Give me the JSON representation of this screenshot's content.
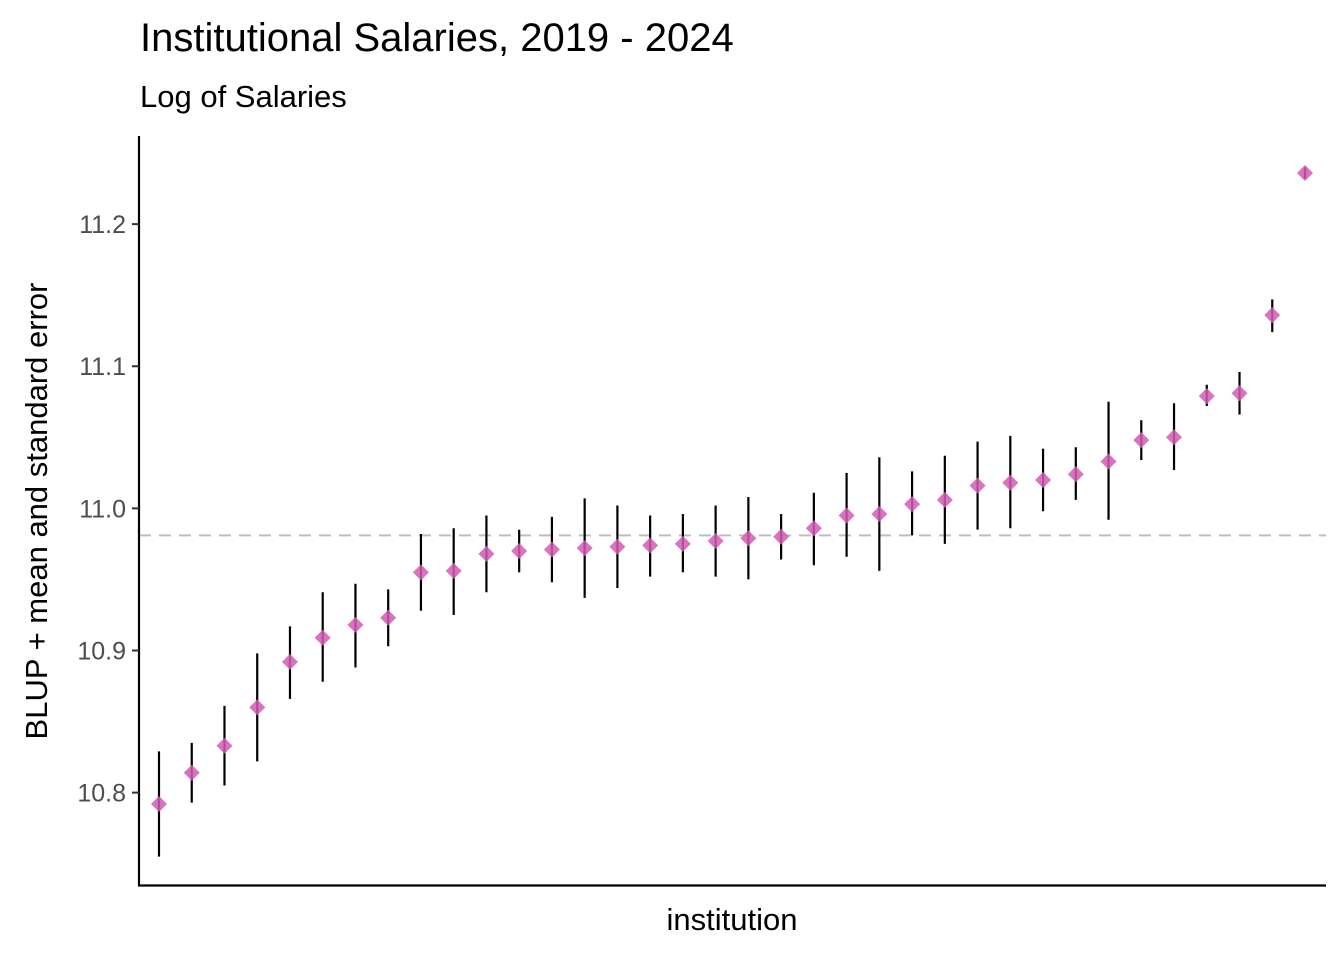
{
  "chart_data": {
    "type": "scatter",
    "title": "Institutional Salaries, 2019 - 2024",
    "subtitle": "Log of Salaries",
    "xlabel": "institution",
    "ylabel": "BLUP + mean and standard error",
    "ylim": [
      10.735,
      11.262
    ],
    "yticks": [
      "10.8",
      "10.9",
      "11.0",
      "11.1",
      "11.2"
    ],
    "reference_line": 10.981,
    "grid": false,
    "marker": "diamond",
    "colors": {
      "point": "#d45ab3",
      "errorbar": "#000000",
      "reference": "#bebebe",
      "axis": "#000000"
    },
    "points": [
      {
        "y": 10.792,
        "lo": 10.755,
        "hi": 10.829
      },
      {
        "y": 10.814,
        "lo": 10.793,
        "hi": 10.835
      },
      {
        "y": 10.833,
        "lo": 10.805,
        "hi": 10.861
      },
      {
        "y": 10.86,
        "lo": 10.822,
        "hi": 10.898
      },
      {
        "y": 10.892,
        "lo": 10.866,
        "hi": 10.917
      },
      {
        "y": 10.909,
        "lo": 10.878,
        "hi": 10.941
      },
      {
        "y": 10.918,
        "lo": 10.888,
        "hi": 10.947
      },
      {
        "y": 10.923,
        "lo": 10.903,
        "hi": 10.943
      },
      {
        "y": 10.955,
        "lo": 10.928,
        "hi": 10.982
      },
      {
        "y": 10.956,
        "lo": 10.925,
        "hi": 10.986
      },
      {
        "y": 10.968,
        "lo": 10.941,
        "hi": 10.995
      },
      {
        "y": 10.97,
        "lo": 10.955,
        "hi": 10.985
      },
      {
        "y": 10.971,
        "lo": 10.948,
        "hi": 10.994
      },
      {
        "y": 10.972,
        "lo": 10.937,
        "hi": 11.007
      },
      {
        "y": 10.973,
        "lo": 10.944,
        "hi": 11.002
      },
      {
        "y": 10.974,
        "lo": 10.952,
        "hi": 10.995
      },
      {
        "y": 10.975,
        "lo": 10.955,
        "hi": 10.996
      },
      {
        "y": 10.977,
        "lo": 10.952,
        "hi": 11.002
      },
      {
        "y": 10.979,
        "lo": 10.95,
        "hi": 11.008
      },
      {
        "y": 10.98,
        "lo": 10.964,
        "hi": 10.996
      },
      {
        "y": 10.986,
        "lo": 10.96,
        "hi": 11.011
      },
      {
        "y": 10.995,
        "lo": 10.966,
        "hi": 11.025
      },
      {
        "y": 10.996,
        "lo": 10.956,
        "hi": 11.036
      },
      {
        "y": 11.003,
        "lo": 10.981,
        "hi": 11.026
      },
      {
        "y": 11.006,
        "lo": 10.975,
        "hi": 11.037
      },
      {
        "y": 11.016,
        "lo": 10.985,
        "hi": 11.047
      },
      {
        "y": 11.018,
        "lo": 10.986,
        "hi": 11.051
      },
      {
        "y": 11.02,
        "lo": 10.998,
        "hi": 11.042
      },
      {
        "y": 11.024,
        "lo": 11.006,
        "hi": 11.043
      },
      {
        "y": 11.033,
        "lo": 10.992,
        "hi": 11.075
      },
      {
        "y": 11.048,
        "lo": 11.034,
        "hi": 11.062
      },
      {
        "y": 11.05,
        "lo": 11.027,
        "hi": 11.074
      },
      {
        "y": 11.079,
        "lo": 11.072,
        "hi": 11.087
      },
      {
        "y": 11.081,
        "lo": 11.066,
        "hi": 11.096
      },
      {
        "y": 11.136,
        "lo": 11.124,
        "hi": 11.147
      },
      {
        "y": 11.236,
        "lo": 11.232,
        "hi": 11.24
      }
    ]
  }
}
